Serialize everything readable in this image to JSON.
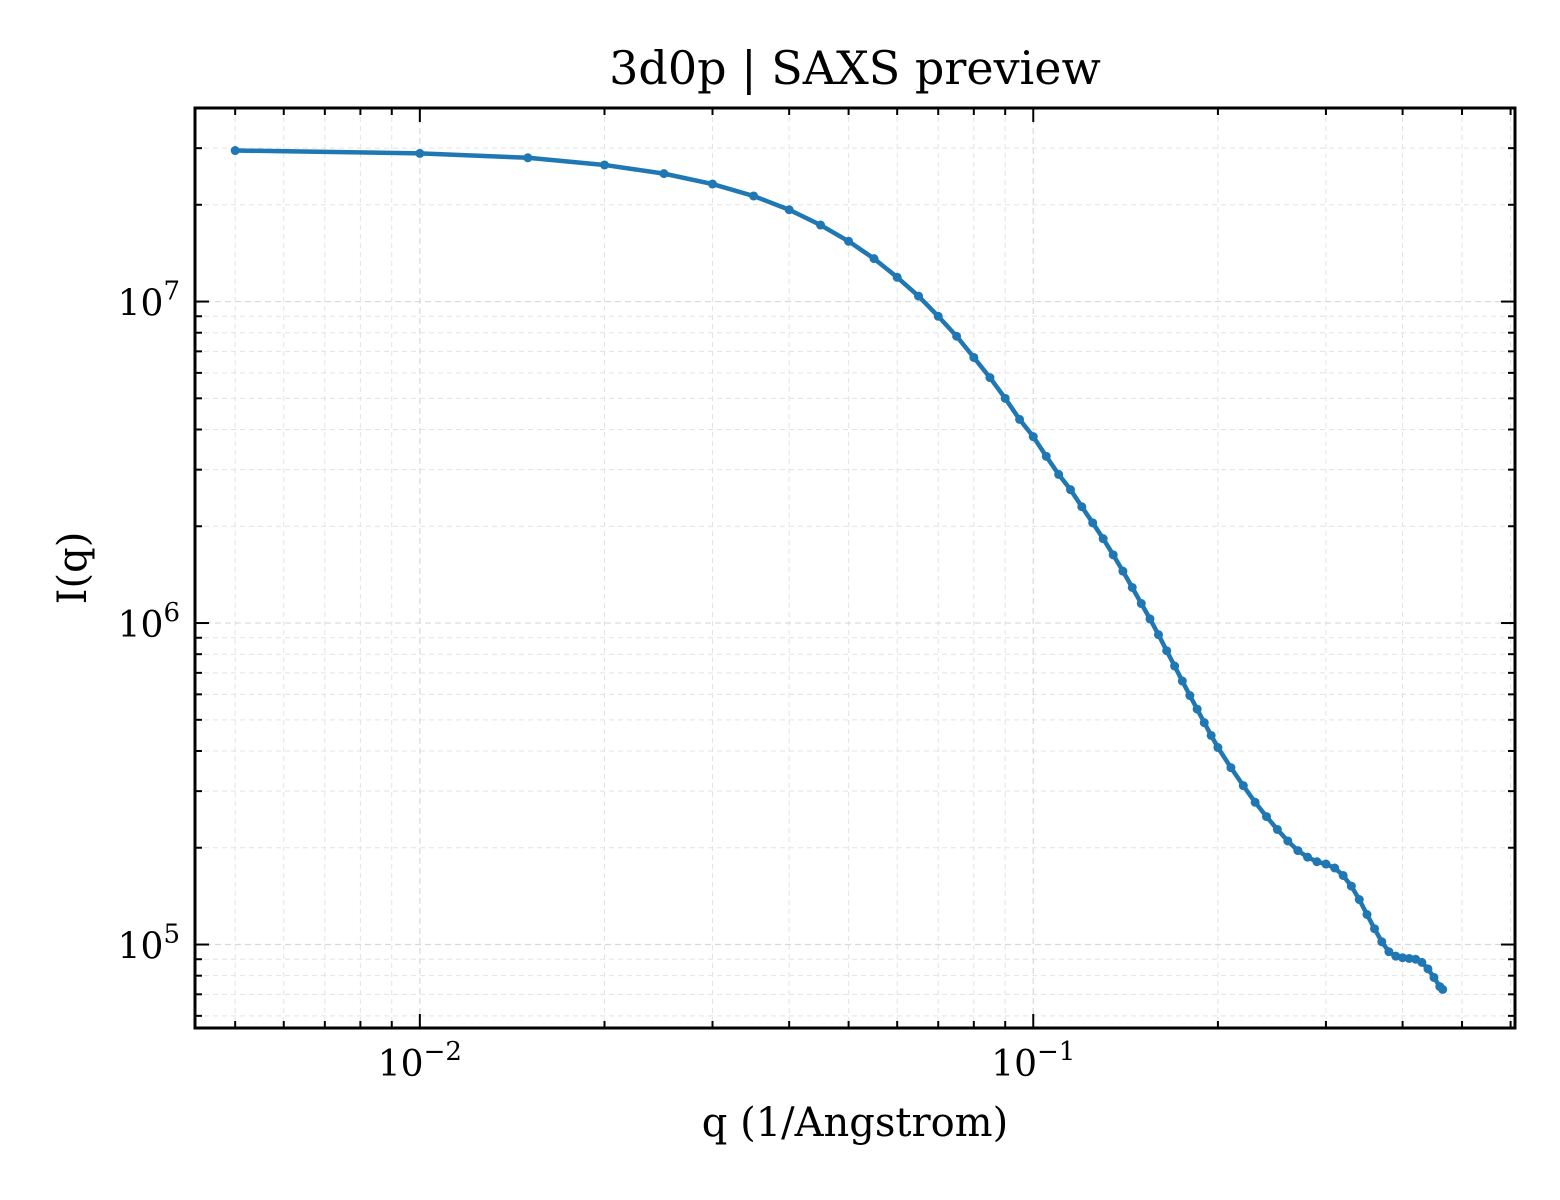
{
  "chart_data": {
    "type": "line",
    "title": "3d0p | SAXS preview",
    "xlabel": "q (1/Angstrom)",
    "ylabel": "I(q)",
    "xscale": "log",
    "yscale": "log",
    "xlim": [
      0.0043,
      0.61
    ],
    "ylim": [
      55000,
      40000000
    ],
    "grid": true,
    "legend": "none",
    "line_color": "#1f77b4",
    "x_ticks": [
      {
        "base": "10",
        "exp": "−2",
        "value": 0.01
      },
      {
        "base": "10",
        "exp": "−1",
        "value": 0.1
      }
    ],
    "y_ticks": [
      {
        "base": "10",
        "exp": "5",
        "value": 100000
      },
      {
        "base": "10",
        "exp": "6",
        "value": 1000000
      },
      {
        "base": "10",
        "exp": "7",
        "value": 10000000
      }
    ],
    "series": [
      {
        "points": [
          [
            0.005,
            29500000
          ],
          [
            0.01,
            28900000
          ],
          [
            0.015,
            28000000
          ],
          [
            0.02,
            26600000
          ],
          [
            0.025,
            25000000
          ],
          [
            0.03,
            23200000
          ],
          [
            0.035,
            21300000
          ],
          [
            0.04,
            19300000
          ],
          [
            0.045,
            17300000
          ],
          [
            0.05,
            15400000
          ],
          [
            0.055,
            13600000
          ],
          [
            0.06,
            11900000
          ],
          [
            0.065,
            10400000
          ],
          [
            0.07,
            9000000
          ],
          [
            0.075,
            7800000
          ],
          [
            0.08,
            6700000
          ],
          [
            0.085,
            5800000
          ],
          [
            0.09,
            5000000
          ],
          [
            0.095,
            4300000
          ],
          [
            0.1,
            3800000
          ],
          [
            0.105,
            3300000
          ],
          [
            0.11,
            2900000
          ],
          [
            0.115,
            2600000
          ],
          [
            0.12,
            2300000
          ],
          [
            0.125,
            2050000
          ],
          [
            0.13,
            1830000
          ],
          [
            0.135,
            1630000
          ],
          [
            0.14,
            1450000
          ],
          [
            0.145,
            1290000
          ],
          [
            0.15,
            1150000
          ],
          [
            0.155,
            1030000
          ],
          [
            0.16,
            920000
          ],
          [
            0.165,
            820000
          ],
          [
            0.17,
            735000
          ],
          [
            0.175,
            660000
          ],
          [
            0.18,
            595000
          ],
          [
            0.185,
            540000
          ],
          [
            0.19,
            490000
          ],
          [
            0.195,
            447000
          ],
          [
            0.2,
            410000
          ],
          [
            0.21,
            355000
          ],
          [
            0.22,
            312000
          ],
          [
            0.23,
            277000
          ],
          [
            0.24,
            250000
          ],
          [
            0.25,
            228000
          ],
          [
            0.26,
            210000
          ],
          [
            0.27,
            196000
          ],
          [
            0.28,
            187000
          ],
          [
            0.29,
            181000
          ],
          [
            0.3,
            178000
          ],
          [
            0.31,
            173000
          ],
          [
            0.32,
            164000
          ],
          [
            0.33,
            152000
          ],
          [
            0.34,
            138000
          ],
          [
            0.35,
            124000
          ],
          [
            0.36,
            112000
          ],
          [
            0.37,
            102000
          ],
          [
            0.38,
            95000
          ],
          [
            0.39,
            92000
          ],
          [
            0.4,
            91000
          ],
          [
            0.41,
            90500
          ],
          [
            0.42,
            90000
          ],
          [
            0.43,
            88000
          ],
          [
            0.44,
            84000
          ],
          [
            0.45,
            79000
          ],
          [
            0.46,
            74000
          ],
          [
            0.465,
            72500
          ]
        ]
      }
    ]
  }
}
